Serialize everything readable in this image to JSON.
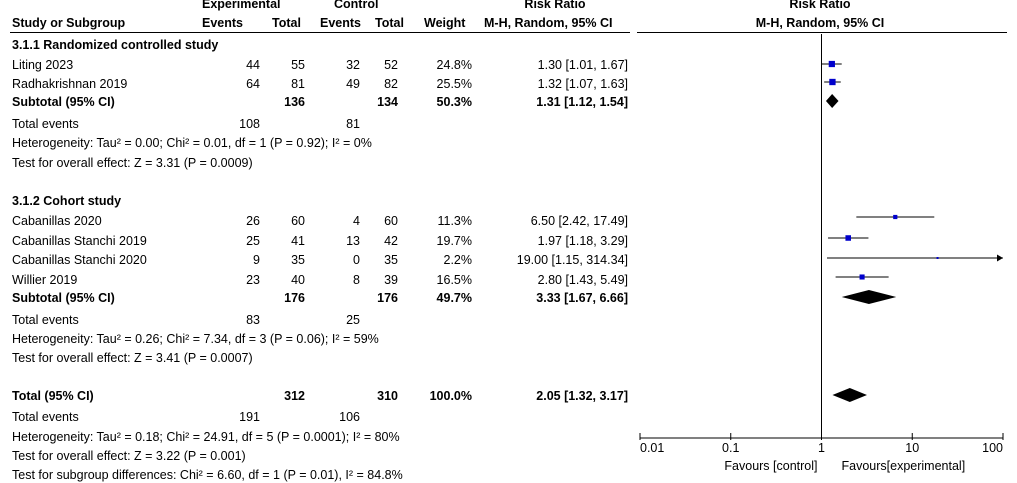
{
  "header": {
    "experimental": "Experimental",
    "control": "Control",
    "risk_ratio": "Risk Ratio",
    "risk_ratio_plot": "Risk Ratio",
    "study_or_subgroup": "Study or Subgroup",
    "events": "Events",
    "total": "Total",
    "events_c": "Events",
    "total_c": "Total",
    "weight": "Weight",
    "method": "M-H, Random, 95% CI",
    "method_plot": "M-H, Random, 95% CI"
  },
  "subgroup1": {
    "title": "3.1.1 Randomized controlled study",
    "rows": [
      {
        "study": "Liting 2023",
        "e_events": "44",
        "e_total": "55",
        "c_events": "32",
        "c_total": "52",
        "weight": "24.8%",
        "ci": "1.30 [1.01, 1.67]"
      },
      {
        "study": "Radhakrishnan 2019",
        "e_events": "64",
        "e_total": "81",
        "c_events": "49",
        "c_total": "82",
        "weight": "25.5%",
        "ci": "1.32 [1.07, 1.63]"
      }
    ],
    "subtotal": {
      "label": "Subtotal (95% CI)",
      "e_total": "136",
      "c_total": "134",
      "weight": "50.3%",
      "ci": "1.31 [1.12, 1.54]"
    },
    "total_events": {
      "label": "Total events",
      "e": "108",
      "c": "81"
    },
    "heterogeneity": "Heterogeneity: Tau² = 0.00; Chi² = 0.01, df = 1 (P = 0.92); I² = 0%",
    "overall": "Test for overall effect: Z = 3.31 (P = 0.0009)"
  },
  "subgroup2": {
    "title": "3.1.2 Cohort study",
    "rows": [
      {
        "study": "Cabanillas 2020",
        "e_events": "26",
        "e_total": "60",
        "c_events": "4",
        "c_total": "60",
        "weight": "11.3%",
        "ci": "6.50 [2.42, 17.49]"
      },
      {
        "study": "Cabanillas Stanchi 2019",
        "e_events": "25",
        "e_total": "41",
        "c_events": "13",
        "c_total": "42",
        "weight": "19.7%",
        "ci": "1.97 [1.18, 3.29]"
      },
      {
        "study": "Cabanillas Stanchi 2020",
        "e_events": "9",
        "e_total": "35",
        "c_events": "0",
        "c_total": "35",
        "weight": "2.2%",
        "ci": "19.00 [1.15, 314.34]"
      },
      {
        "study": "Willier 2019",
        "e_events": "23",
        "e_total": "40",
        "c_events": "8",
        "c_total": "39",
        "weight": "16.5%",
        "ci": "2.80 [1.43, 5.49]"
      }
    ],
    "subtotal": {
      "label": "Subtotal (95% CI)",
      "e_total": "176",
      "c_total": "176",
      "weight": "49.7%",
      "ci": "3.33 [1.67, 6.66]"
    },
    "total_events": {
      "label": "Total events",
      "e": "83",
      "c": "25"
    },
    "heterogeneity": "Heterogeneity: Tau² = 0.26; Chi² = 7.34, df = 3 (P = 0.06); I² = 59%",
    "overall": "Test for overall effect: Z = 3.41 (P = 0.0007)"
  },
  "total": {
    "label": "Total (95% CI)",
    "e_total": "312",
    "c_total": "310",
    "weight": "100.0%",
    "ci": "2.05 [1.32, 3.17]",
    "total_events": {
      "label": "Total events",
      "e": "191",
      "c": "106"
    },
    "heterogeneity": "Heterogeneity: Tau² = 0.18; Chi² = 24.91, df = 5 (P = 0.0001); I² = 80%",
    "overall": "Test for overall effect: Z = 3.22 (P = 0.001)",
    "subgroup_diff": "Test for subgroup differences: Chi² = 6.60, df = 1 (P = 0.01), I² = 84.8%"
  },
  "chart_data": {
    "type": "forest",
    "scale": "log",
    "xlim": [
      0.01,
      100
    ],
    "ticks": [
      "0.01",
      "0.1",
      "1",
      "10",
      "100"
    ],
    "favours_left": "Favours [control]",
    "favours_right": "Favours[experimental]",
    "studies": [
      {
        "name": "Liting 2023",
        "rr": 1.3,
        "lo": 1.01,
        "hi": 1.67,
        "weight": 24.8
      },
      {
        "name": "Radhakrishnan 2019",
        "rr": 1.32,
        "lo": 1.07,
        "hi": 1.63,
        "weight": 25.5
      },
      {
        "name": "Cabanillas 2020",
        "rr": 6.5,
        "lo": 2.42,
        "hi": 17.49,
        "weight": 11.3
      },
      {
        "name": "Cabanillas Stanchi 2019",
        "rr": 1.97,
        "lo": 1.18,
        "hi": 3.29,
        "weight": 19.7
      },
      {
        "name": "Cabanillas Stanchi 2020",
        "rr": 19.0,
        "lo": 1.15,
        "hi": 314.34,
        "weight": 2.2
      },
      {
        "name": "Willier 2019",
        "rr": 2.8,
        "lo": 1.43,
        "hi": 5.49,
        "weight": 16.5
      }
    ],
    "diamonds": [
      {
        "name": "Subtotal randomized",
        "rr": 1.31,
        "lo": 1.12,
        "hi": 1.54
      },
      {
        "name": "Subtotal cohort",
        "rr": 3.33,
        "lo": 1.67,
        "hi": 6.66
      },
      {
        "name": "Total",
        "rr": 2.05,
        "lo": 1.32,
        "hi": 3.17
      }
    ],
    "colors": {
      "square": "#0000cc",
      "line": "#000000",
      "diamond": "#000000"
    }
  }
}
